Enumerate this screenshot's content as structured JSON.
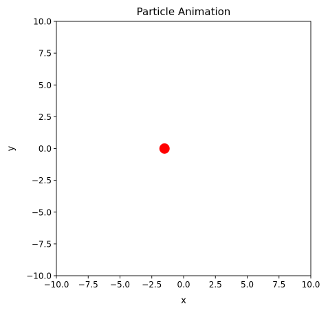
{
  "chart_data": {
    "type": "scatter",
    "title": "Particle Animation",
    "xlabel": "x",
    "ylabel": "y",
    "xlim": [
      -10,
      10
    ],
    "ylim": [
      -10,
      10
    ],
    "x_ticks": [
      -10.0,
      -7.5,
      -5.0,
      -2.5,
      0.0,
      2.5,
      5.0,
      7.5,
      10.0
    ],
    "y_ticks": [
      -10.0,
      -7.5,
      -5.0,
      -2.5,
      0.0,
      2.5,
      5.0,
      7.5,
      10.0
    ],
    "x_tick_labels": [
      "−10.0",
      "−7.5",
      "−5.0",
      "−2.5",
      "0.0",
      "2.5",
      "5.0",
      "7.5",
      "10.0"
    ],
    "y_tick_labels": [
      "−10.0",
      "−7.5",
      "−5.0",
      "−2.5",
      "0.0",
      "2.5",
      "5.0",
      "7.5",
      "10.0"
    ],
    "grid": false,
    "legend": "none",
    "series": [
      {
        "points": [
          {
            "x": -1.5,
            "y": 0.0
          }
        ],
        "color": "#ff0000",
        "marker": "circle"
      }
    ]
  }
}
